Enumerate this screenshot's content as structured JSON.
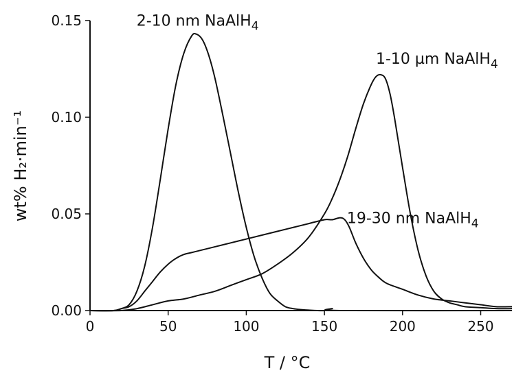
{
  "chart_data": {
    "type": "line",
    "xlabel": "T / °C",
    "ylabel": "wt% H₂·min⁻¹",
    "xlim": [
      0,
      270
    ],
    "ylim": [
      0,
      0.15
    ],
    "x_ticks": [
      0,
      50,
      100,
      150,
      200,
      250
    ],
    "y_ticks": [
      0.0,
      0.05,
      0.1,
      0.15
    ],
    "x_tick_labels": [
      "0",
      "50",
      "100",
      "150",
      "200",
      "250"
    ],
    "y_tick_labels": [
      "0.00",
      "0.05",
      "0.10",
      "0.15"
    ],
    "grid": false,
    "legend": "none",
    "line_color": "#111111",
    "series": [
      {
        "name": "2-10 nm NaAlH4",
        "x": [
          0,
          15,
          20,
          25,
          30,
          35,
          40,
          45,
          50,
          55,
          60,
          65,
          68,
          72,
          76,
          80,
          85,
          90,
          95,
          100,
          105,
          110,
          115,
          120,
          125,
          130,
          135,
          140,
          150,
          155,
          160,
          270
        ],
        "y": [
          0.0,
          0.0,
          0.001,
          0.003,
          0.01,
          0.023,
          0.043,
          0.068,
          0.094,
          0.117,
          0.133,
          0.142,
          0.143,
          0.14,
          0.132,
          0.12,
          0.101,
          0.081,
          0.061,
          0.043,
          0.028,
          0.017,
          0.009,
          0.005,
          0.002,
          0.001,
          0.0005,
          0.0002,
          0.0,
          0.001,
          0.0,
          0.0
        ]
      },
      {
        "name": "1-10 µm NaAlH4",
        "x": [
          0,
          20,
          30,
          40,
          50,
          60,
          70,
          80,
          90,
          100,
          110,
          120,
          130,
          140,
          150,
          155,
          160,
          165,
          170,
          175,
          180,
          183,
          186,
          189,
          192,
          195,
          200,
          205,
          210,
          215,
          220,
          225,
          230,
          235,
          240,
          250,
          260,
          270
        ],
        "y": [
          0.0,
          0.0,
          0.001,
          0.003,
          0.005,
          0.006,
          0.008,
          0.01,
          0.013,
          0.016,
          0.019,
          0.024,
          0.03,
          0.038,
          0.05,
          0.058,
          0.068,
          0.08,
          0.094,
          0.107,
          0.117,
          0.121,
          0.122,
          0.12,
          0.112,
          0.099,
          0.074,
          0.05,
          0.031,
          0.018,
          0.01,
          0.006,
          0.004,
          0.003,
          0.002,
          0.0015,
          0.001,
          0.001
        ]
      },
      {
        "name": "19-30 nm NaAlH4",
        "x": [
          0,
          15,
          20,
          25,
          30,
          35,
          40,
          45,
          50,
          55,
          60,
          65,
          70,
          80,
          90,
          100,
          110,
          120,
          130,
          140,
          150,
          155,
          160,
          163,
          166,
          170,
          175,
          180,
          185,
          190,
          200,
          210,
          220,
          230,
          240,
          250,
          260,
          270
        ],
        "y": [
          0.0,
          0.0,
          0.001,
          0.002,
          0.005,
          0.01,
          0.015,
          0.02,
          0.024,
          0.027,
          0.029,
          0.03,
          0.031,
          0.033,
          0.035,
          0.037,
          0.039,
          0.041,
          0.043,
          0.045,
          0.047,
          0.047,
          0.048,
          0.047,
          0.043,
          0.035,
          0.027,
          0.021,
          0.017,
          0.014,
          0.011,
          0.008,
          0.006,
          0.005,
          0.004,
          0.003,
          0.002,
          0.002
        ]
      }
    ],
    "annotations": [
      {
        "series": "2-10 nm NaAlH4",
        "prefix": "2-10 nm NaAlH",
        "sub": "4"
      },
      {
        "series": "1-10 µm NaAlH4",
        "prefix": "1-10 µm NaAlH",
        "sub": "4"
      },
      {
        "series": "19-30 nm NaAlH4",
        "prefix": "19-30 nm NaAlH",
        "sub": "4"
      }
    ]
  }
}
